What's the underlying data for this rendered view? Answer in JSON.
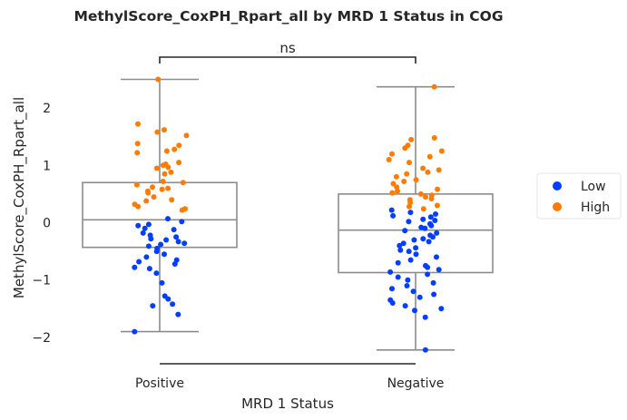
{
  "chart_data": {
    "type": "box",
    "title": "MethylScore_CoxPH_Rpart_all by MRD 1 Status in COG",
    "xlabel": "MRD 1 Status",
    "ylabel": "MethylScore_CoxPH_Rpart_all",
    "categories": [
      "Positive",
      "Negative"
    ],
    "ylim": [
      -2.45,
      2.6
    ],
    "yticks": [
      {
        "value": 2,
        "label": "2"
      },
      {
        "value": 1,
        "label": "1"
      },
      {
        "value": 0,
        "label": "0"
      },
      {
        "value": -1,
        "label": "−1"
      },
      {
        "value": -2,
        "label": "−2"
      }
    ],
    "grid": false,
    "legend_position": "right",
    "annotation": {
      "text": "ns",
      "between": [
        "Positive",
        "Negative"
      ]
    },
    "colors": {
      "Low": "#023eff",
      "High": "#ff7c00",
      "box": "#8c8c8c",
      "text": "#262626"
    },
    "boxes": [
      {
        "category": "Positive",
        "whisker_low": -1.9,
        "q1": -0.43,
        "median": 0.05,
        "q3": 0.7,
        "whisker_high": 2.5
      },
      {
        "category": "Negative",
        "whisker_low": -2.22,
        "q1": -0.87,
        "median": -0.13,
        "q3": 0.5,
        "whisker_high": 2.37
      }
    ],
    "series": [
      {
        "name": "Low",
        "points": [
          {
            "x": "Positive",
            "y": 0.07
          },
          {
            "x": "Positive",
            "y": 0.02
          },
          {
            "x": "Positive",
            "y": -0.03
          },
          {
            "x": "Positive",
            "y": -0.05
          },
          {
            "x": "Positive",
            "y": -0.1
          },
          {
            "x": "Positive",
            "y": -0.12
          },
          {
            "x": "Positive",
            "y": -0.18
          },
          {
            "x": "Positive",
            "y": -0.22
          },
          {
            "x": "Positive",
            "y": -0.25
          },
          {
            "x": "Positive",
            "y": -0.28
          },
          {
            "x": "Positive",
            "y": -0.3
          },
          {
            "x": "Positive",
            "y": -0.33
          },
          {
            "x": "Positive",
            "y": -0.36
          },
          {
            "x": "Positive",
            "y": -0.38
          },
          {
            "x": "Positive",
            "y": -0.41
          },
          {
            "x": "Positive",
            "y": -0.45
          },
          {
            "x": "Positive",
            "y": -0.5
          },
          {
            "x": "Positive",
            "y": -0.55
          },
          {
            "x": "Positive",
            "y": -0.6
          },
          {
            "x": "Positive",
            "y": -0.65
          },
          {
            "x": "Positive",
            "y": -0.68
          },
          {
            "x": "Positive",
            "y": -0.72
          },
          {
            "x": "Positive",
            "y": -0.78
          },
          {
            "x": "Positive",
            "y": -0.8
          },
          {
            "x": "Positive",
            "y": -0.88
          },
          {
            "x": "Positive",
            "y": -1.05
          },
          {
            "x": "Positive",
            "y": -1.28
          },
          {
            "x": "Positive",
            "y": -1.33
          },
          {
            "x": "Positive",
            "y": -1.42
          },
          {
            "x": "Positive",
            "y": -1.45
          },
          {
            "x": "Positive",
            "y": -1.6
          },
          {
            "x": "Positive",
            "y": -1.9
          },
          {
            "x": "Negative",
            "y": 0.22
          },
          {
            "x": "Negative",
            "y": 0.18
          },
          {
            "x": "Negative",
            "y": 0.15
          },
          {
            "x": "Negative",
            "y": 0.12
          },
          {
            "x": "Negative",
            "y": 0.1
          },
          {
            "x": "Negative",
            "y": 0.06
          },
          {
            "x": "Negative",
            "y": 0.04
          },
          {
            "x": "Negative",
            "y": 0.02
          },
          {
            "x": "Negative",
            "y": -0.02
          },
          {
            "x": "Negative",
            "y": -0.05
          },
          {
            "x": "Negative",
            "y": -0.08
          },
          {
            "x": "Negative",
            "y": -0.1
          },
          {
            "x": "Negative",
            "y": -0.14
          },
          {
            "x": "Negative",
            "y": -0.18
          },
          {
            "x": "Negative",
            "y": -0.22
          },
          {
            "x": "Negative",
            "y": -0.25
          },
          {
            "x": "Negative",
            "y": -0.28
          },
          {
            "x": "Negative",
            "y": -0.3
          },
          {
            "x": "Negative",
            "y": -0.33
          },
          {
            "x": "Negative",
            "y": -0.36
          },
          {
            "x": "Negative",
            "y": -0.4
          },
          {
            "x": "Negative",
            "y": -0.44
          },
          {
            "x": "Negative",
            "y": -0.48
          },
          {
            "x": "Negative",
            "y": -0.5
          },
          {
            "x": "Negative",
            "y": -0.55
          },
          {
            "x": "Negative",
            "y": -0.6
          },
          {
            "x": "Negative",
            "y": -0.65
          },
          {
            "x": "Negative",
            "y": -0.7
          },
          {
            "x": "Negative",
            "y": -0.75
          },
          {
            "x": "Negative",
            "y": -0.78
          },
          {
            "x": "Negative",
            "y": -0.82
          },
          {
            "x": "Negative",
            "y": -0.86
          },
          {
            "x": "Negative",
            "y": -0.9
          },
          {
            "x": "Negative",
            "y": -0.95
          },
          {
            "x": "Negative",
            "y": -1.0
          },
          {
            "x": "Negative",
            "y": -1.05
          },
          {
            "x": "Negative",
            "y": -1.1
          },
          {
            "x": "Negative",
            "y": -1.15
          },
          {
            "x": "Negative",
            "y": -1.2
          },
          {
            "x": "Negative",
            "y": -1.25
          },
          {
            "x": "Negative",
            "y": -1.3
          },
          {
            "x": "Negative",
            "y": -1.35
          },
          {
            "x": "Negative",
            "y": -1.4
          },
          {
            "x": "Negative",
            "y": -1.45
          },
          {
            "x": "Negative",
            "y": -1.5
          },
          {
            "x": "Negative",
            "y": -1.53
          },
          {
            "x": "Negative",
            "y": -1.65
          },
          {
            "x": "Negative",
            "y": -2.22
          }
        ]
      },
      {
        "name": "High",
        "points": [
          {
            "x": "Positive",
            "y": 2.5
          },
          {
            "x": "Positive",
            "y": 1.72
          },
          {
            "x": "Positive",
            "y": 1.62
          },
          {
            "x": "Positive",
            "y": 1.58
          },
          {
            "x": "Positive",
            "y": 1.52
          },
          {
            "x": "Positive",
            "y": 1.38
          },
          {
            "x": "Positive",
            "y": 1.35
          },
          {
            "x": "Positive",
            "y": 1.28
          },
          {
            "x": "Positive",
            "y": 1.25
          },
          {
            "x": "Positive",
            "y": 1.22
          },
          {
            "x": "Positive",
            "y": 1.05
          },
          {
            "x": "Positive",
            "y": 1.02
          },
          {
            "x": "Positive",
            "y": 1.0
          },
          {
            "x": "Positive",
            "y": 0.97
          },
          {
            "x": "Positive",
            "y": 0.95
          },
          {
            "x": "Positive",
            "y": 0.88
          },
          {
            "x": "Positive",
            "y": 0.85
          },
          {
            "x": "Positive",
            "y": 0.72
          },
          {
            "x": "Positive",
            "y": 0.7
          },
          {
            "x": "Positive",
            "y": 0.66
          },
          {
            "x": "Positive",
            "y": 0.62
          },
          {
            "x": "Positive",
            "y": 0.6
          },
          {
            "x": "Positive",
            "y": 0.58
          },
          {
            "x": "Positive",
            "y": 0.55
          },
          {
            "x": "Positive",
            "y": 0.52
          },
          {
            "x": "Positive",
            "y": 0.45
          },
          {
            "x": "Positive",
            "y": 0.4
          },
          {
            "x": "Positive",
            "y": 0.38
          },
          {
            "x": "Positive",
            "y": 0.32
          },
          {
            "x": "Positive",
            "y": 0.28
          },
          {
            "x": "Positive",
            "y": 0.24
          },
          {
            "x": "Positive",
            "y": 0.22
          },
          {
            "x": "Negative",
            "y": 2.37
          },
          {
            "x": "Negative",
            "y": 1.48
          },
          {
            "x": "Negative",
            "y": 1.45
          },
          {
            "x": "Negative",
            "y": 1.35
          },
          {
            "x": "Negative",
            "y": 1.3
          },
          {
            "x": "Negative",
            "y": 1.25
          },
          {
            "x": "Negative",
            "y": 1.2
          },
          {
            "x": "Negative",
            "y": 1.15
          },
          {
            "x": "Negative",
            "y": 1.1
          },
          {
            "x": "Negative",
            "y": 1.05
          },
          {
            "x": "Negative",
            "y": 0.95
          },
          {
            "x": "Negative",
            "y": 0.92
          },
          {
            "x": "Negative",
            "y": 0.88
          },
          {
            "x": "Negative",
            "y": 0.85
          },
          {
            "x": "Negative",
            "y": 0.8
          },
          {
            "x": "Negative",
            "y": 0.75
          },
          {
            "x": "Negative",
            "y": 0.72
          },
          {
            "x": "Negative",
            "y": 0.68
          },
          {
            "x": "Negative",
            "y": 0.62
          },
          {
            "x": "Negative",
            "y": 0.58
          },
          {
            "x": "Negative",
            "y": 0.55
          },
          {
            "x": "Negative",
            "y": 0.52
          },
          {
            "x": "Negative",
            "y": 0.5
          },
          {
            "x": "Negative",
            "y": 0.48
          },
          {
            "x": "Negative",
            "y": 0.45
          },
          {
            "x": "Negative",
            "y": 0.42
          },
          {
            "x": "Negative",
            "y": 0.4
          },
          {
            "x": "Negative",
            "y": 0.35
          },
          {
            "x": "Negative",
            "y": 0.3
          },
          {
            "x": "Negative",
            "y": 0.28
          },
          {
            "x": "Negative",
            "y": 0.24
          }
        ]
      }
    ]
  }
}
